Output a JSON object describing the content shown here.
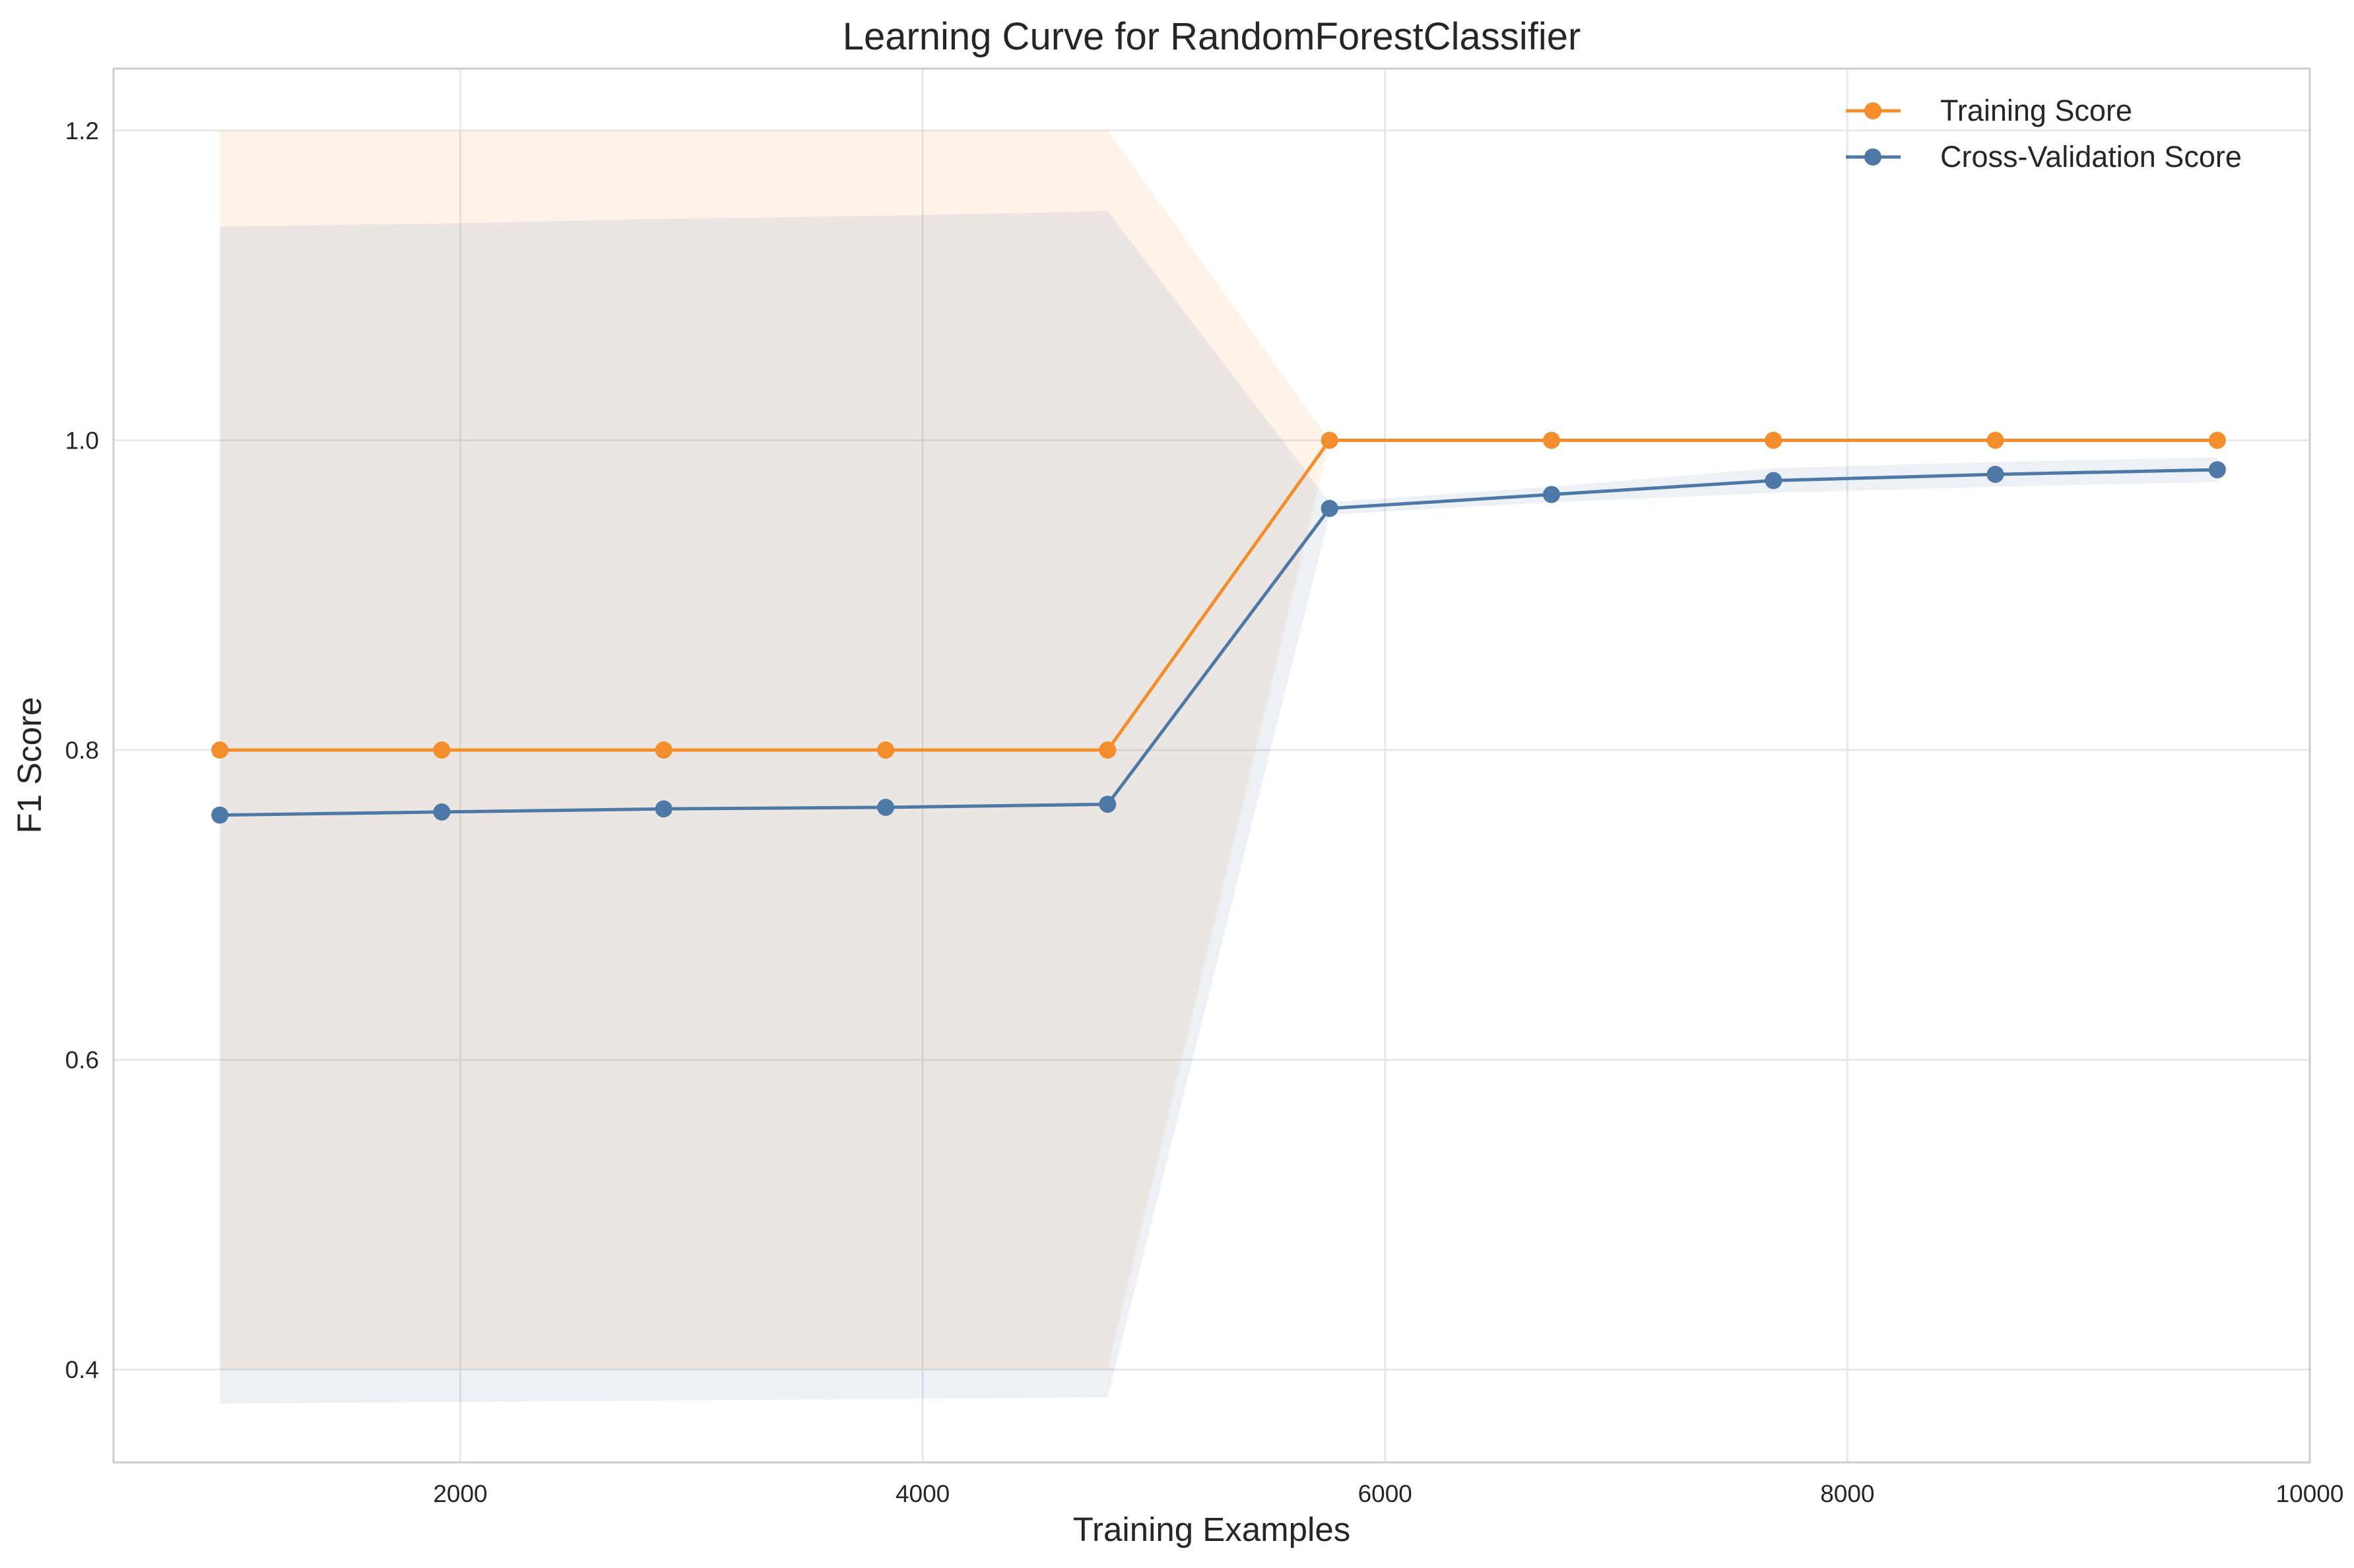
{
  "chart_data": {
    "type": "line",
    "title": "Learning Curve for RandomForestClassifier",
    "xlabel": "Training Examples",
    "ylabel": "F1 Score",
    "xlim": [
      500,
      10000
    ],
    "ylim": [
      0.34,
      1.24
    ],
    "xticks": [
      2000,
      4000,
      6000,
      8000,
      10000
    ],
    "xtick_labels": [
      "2000",
      "4000",
      "6000",
      "8000",
      "10000"
    ],
    "yticks": [
      0.4,
      0.6,
      0.8,
      1.0,
      1.2
    ],
    "ytick_labels": [
      "0.4",
      "0.6",
      "0.8",
      "1.0",
      "1.2"
    ],
    "grid": true,
    "legend_position": "top-right",
    "x": [
      960,
      1920,
      2880,
      3840,
      4800,
      5760,
      6720,
      7680,
      8640,
      9600
    ],
    "series": [
      {
        "name": "Training Score",
        "color": "#f28e2b",
        "values": [
          0.8,
          0.8,
          0.8,
          0.8,
          0.8,
          1.0,
          1.0,
          1.0,
          1.0,
          1.0
        ],
        "band_upper": [
          1.2,
          1.2,
          1.2,
          1.2,
          1.2,
          1.0,
          1.0,
          1.0,
          1.0,
          1.0
        ],
        "band_lower": [
          0.4,
          0.4,
          0.4,
          0.4,
          0.4,
          1.0,
          1.0,
          1.0,
          1.0,
          1.0
        ]
      },
      {
        "name": "Cross-Validation Score",
        "color": "#4e79a7",
        "values": [
          0.758,
          0.76,
          0.762,
          0.763,
          0.765,
          0.956,
          0.965,
          0.974,
          0.978,
          0.981
        ],
        "band_upper": [
          1.138,
          1.14,
          1.143,
          1.145,
          1.148,
          0.96,
          0.97,
          0.982,
          0.986,
          0.989
        ],
        "band_lower": [
          0.378,
          0.379,
          0.38,
          0.381,
          0.382,
          0.952,
          0.96,
          0.966,
          0.97,
          0.973
        ]
      }
    ]
  }
}
